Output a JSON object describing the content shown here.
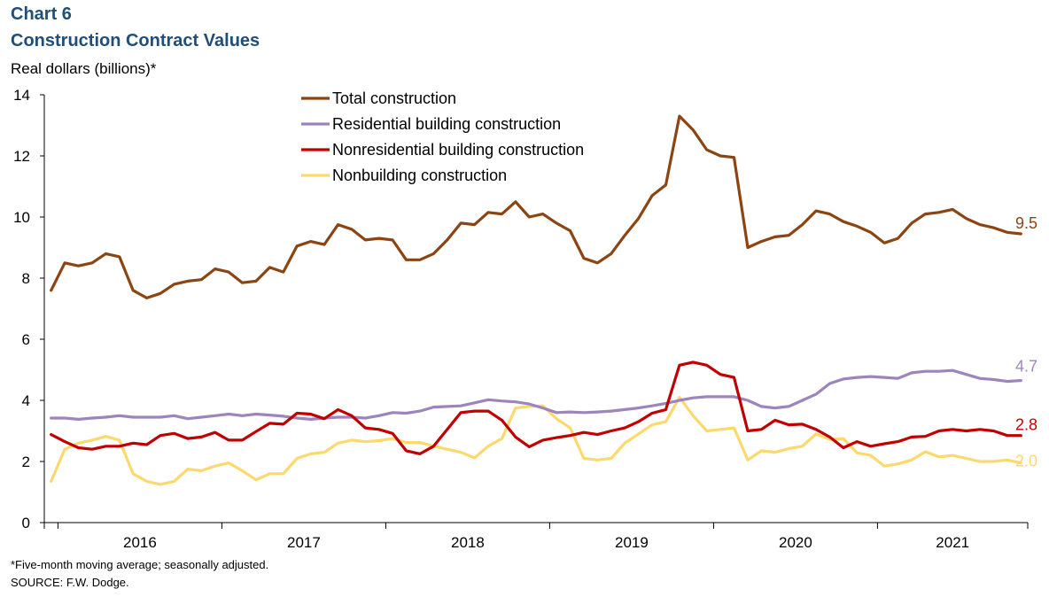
{
  "header": {
    "chart_number": "Chart 6",
    "title": "Construction Contract Values",
    "y_axis_label": "Real dollars (billions)*"
  },
  "footer": {
    "note": "*Five-month moving average; seasonally adjusted.",
    "source": "SOURCE:  F.W. Dodge."
  },
  "colors": {
    "total": "#8b4513",
    "residential": "#9c85bd",
    "nonresidential": "#c00000",
    "nonbuilding": "#fcd96f",
    "axis": "#000000"
  },
  "chart_data": {
    "type": "line",
    "title": "Construction Contract Values",
    "ylabel": "Real dollars (billions)*",
    "xlabel": "",
    "ylim": [
      0,
      14
    ],
    "yticks": [
      0,
      2,
      4,
      6,
      8,
      10,
      12,
      14
    ],
    "x_start": "2015-12",
    "x_end": "2021-11",
    "year_labels": [
      "2016",
      "2017",
      "2018",
      "2019",
      "2020",
      "2021"
    ],
    "grid": false,
    "legend_position": "top-center",
    "series": [
      {
        "name": "Total construction",
        "color_key": "total",
        "end_label": "9.5",
        "values": [
          7.6,
          8.5,
          8.4,
          8.5,
          8.8,
          8.7,
          7.6,
          7.35,
          7.5,
          7.8,
          7.9,
          7.95,
          8.3,
          8.2,
          7.85,
          7.9,
          8.35,
          8.2,
          9.05,
          9.2,
          9.1,
          9.75,
          9.6,
          9.25,
          9.3,
          9.25,
          8.6,
          8.6,
          8.8,
          9.25,
          9.8,
          9.75,
          10.15,
          10.1,
          10.5,
          10.0,
          10.1,
          9.8,
          9.55,
          8.65,
          8.5,
          8.8,
          9.4,
          9.95,
          10.7,
          11.05,
          13.3,
          12.85,
          12.2,
          12.0,
          11.95,
          9.0,
          9.2,
          9.35,
          9.4,
          9.75,
          10.2,
          10.1,
          9.85,
          9.7,
          9.5,
          9.15,
          9.3,
          9.8,
          10.1,
          10.15,
          10.25,
          9.95,
          9.75,
          9.65,
          9.5,
          9.45
        ]
      },
      {
        "name": "Residential building construction",
        "color_key": "residential",
        "end_label": "4.7",
        "values": [
          3.42,
          3.42,
          3.38,
          3.42,
          3.45,
          3.5,
          3.45,
          3.45,
          3.45,
          3.5,
          3.4,
          3.45,
          3.5,
          3.55,
          3.5,
          3.55,
          3.52,
          3.48,
          3.42,
          3.38,
          3.42,
          3.45,
          3.45,
          3.42,
          3.5,
          3.6,
          3.58,
          3.65,
          3.78,
          3.8,
          3.82,
          3.92,
          4.02,
          3.98,
          3.95,
          3.88,
          3.75,
          3.6,
          3.62,
          3.6,
          3.62,
          3.65,
          3.7,
          3.75,
          3.82,
          3.9,
          4.0,
          4.08,
          4.12,
          4.12,
          4.12,
          4.0,
          3.8,
          3.75,
          3.8,
          4.0,
          4.2,
          4.55,
          4.7,
          4.75,
          4.78,
          4.75,
          4.72,
          4.9,
          4.95,
          4.95,
          4.98,
          4.85,
          4.72,
          4.68,
          4.62,
          4.65
        ]
      },
      {
        "name": "Nonresidential building construction",
        "color_key": "nonresidential",
        "end_label": "2.8",
        "values": [
          2.88,
          2.65,
          2.45,
          2.4,
          2.5,
          2.5,
          2.6,
          2.55,
          2.85,
          2.92,
          2.75,
          2.8,
          2.95,
          2.7,
          2.7,
          2.98,
          3.25,
          3.22,
          3.58,
          3.55,
          3.4,
          3.7,
          3.5,
          3.1,
          3.05,
          2.92,
          2.35,
          2.25,
          2.5,
          3.05,
          3.6,
          3.65,
          3.65,
          3.35,
          2.8,
          2.48,
          2.7,
          2.78,
          2.85,
          2.95,
          2.88,
          3.0,
          3.1,
          3.3,
          3.58,
          3.7,
          5.15,
          5.25,
          5.15,
          4.85,
          4.75,
          3.0,
          3.05,
          3.35,
          3.2,
          3.22,
          3.05,
          2.8,
          2.45,
          2.65,
          2.5,
          2.58,
          2.65,
          2.8,
          2.82,
          3.0,
          3.05,
          3.0,
          3.05,
          3.0,
          2.85,
          2.85
        ]
      },
      {
        "name": "Nonbuilding construction",
        "color_key": "nonbuilding",
        "end_label": "2.0",
        "values": [
          1.35,
          2.4,
          2.6,
          2.7,
          2.82,
          2.7,
          1.6,
          1.35,
          1.25,
          1.35,
          1.75,
          1.7,
          1.85,
          1.95,
          1.7,
          1.4,
          1.6,
          1.6,
          2.1,
          2.25,
          2.3,
          2.6,
          2.7,
          2.65,
          2.68,
          2.75,
          2.62,
          2.62,
          2.5,
          2.4,
          2.3,
          2.12,
          2.5,
          2.75,
          3.75,
          3.8,
          3.82,
          3.4,
          3.1,
          2.1,
          2.05,
          2.1,
          2.6,
          2.9,
          3.2,
          3.3,
          4.1,
          3.5,
          3.0,
          3.05,
          3.1,
          2.05,
          2.35,
          2.3,
          2.42,
          2.5,
          2.9,
          2.72,
          2.75,
          2.28,
          2.2,
          1.85,
          1.92,
          2.05,
          2.32,
          2.15,
          2.2,
          2.1,
          2.0,
          2.0,
          2.05,
          1.95
        ]
      }
    ]
  }
}
